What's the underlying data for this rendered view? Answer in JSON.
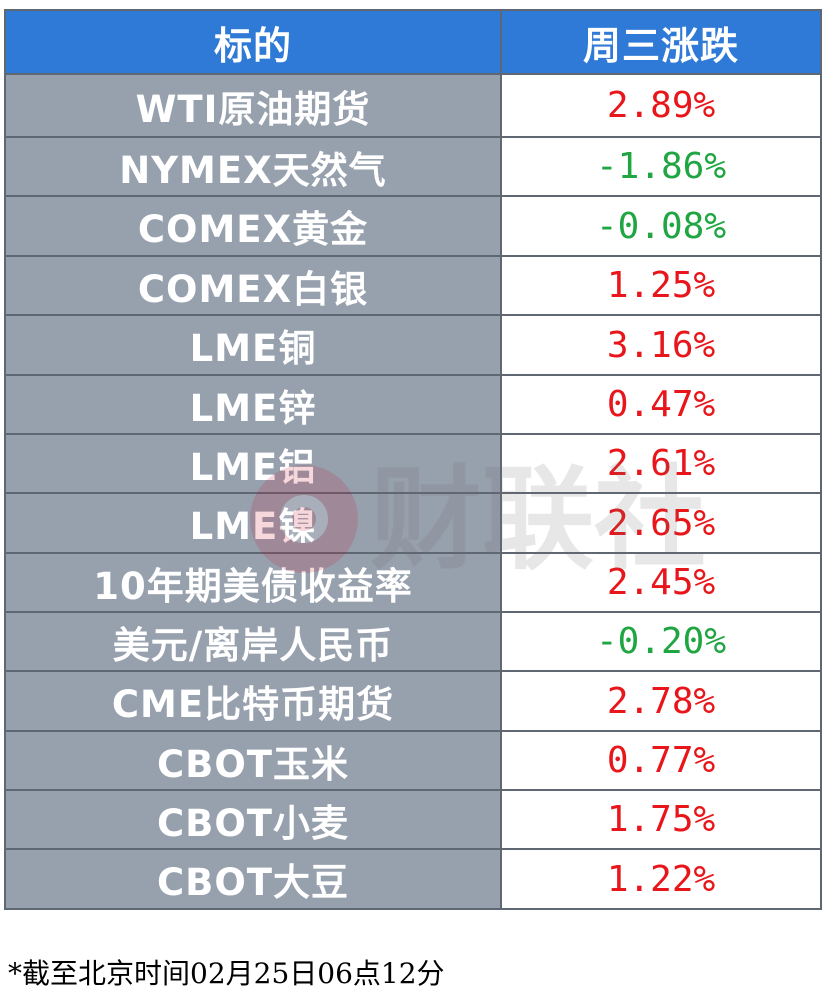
{
  "header": {
    "col_name": "标的",
    "col_change": "周三涨跌"
  },
  "colors": {
    "header_bg": "#2e7ad6",
    "name_cell_bg": "#97a0ad",
    "up": "#e8161b",
    "down": "#1fa541"
  },
  "rows": [
    {
      "name": "WTI原油期货",
      "change": "2.89%",
      "direction": "up"
    },
    {
      "name": "NYMEX天然气",
      "change": "-1.86%",
      "direction": "down"
    },
    {
      "name": "COMEX黄金",
      "change": "-0.08%",
      "direction": "down"
    },
    {
      "name": "COMEX白银",
      "change": "1.25%",
      "direction": "up"
    },
    {
      "name": "LME铜",
      "change": "3.16%",
      "direction": "up"
    },
    {
      "name": "LME锌",
      "change": "0.47%",
      "direction": "up"
    },
    {
      "name": "LME铝",
      "change": "2.61%",
      "direction": "up"
    },
    {
      "name": "LME镍",
      "change": "2.65%",
      "direction": "up"
    },
    {
      "name": "10年期美债收益率",
      "change": "2.45%",
      "direction": "up"
    },
    {
      "name": "美元/离岸人民币",
      "change": "-0.20%",
      "direction": "down"
    },
    {
      "name": "CME比特币期货",
      "change": "2.78%",
      "direction": "up"
    },
    {
      "name": "CBOT玉米",
      "change": "0.77%",
      "direction": "up"
    },
    {
      "name": "CBOT小麦",
      "change": "1.75%",
      "direction": "up"
    },
    {
      "name": "CBOT大豆",
      "change": "1.22%",
      "direction": "up"
    }
  ],
  "footnote": "*截至北京时间02月25日06点12分",
  "watermark": {
    "text": "财联社",
    "icon": "cls-logo-icon"
  }
}
